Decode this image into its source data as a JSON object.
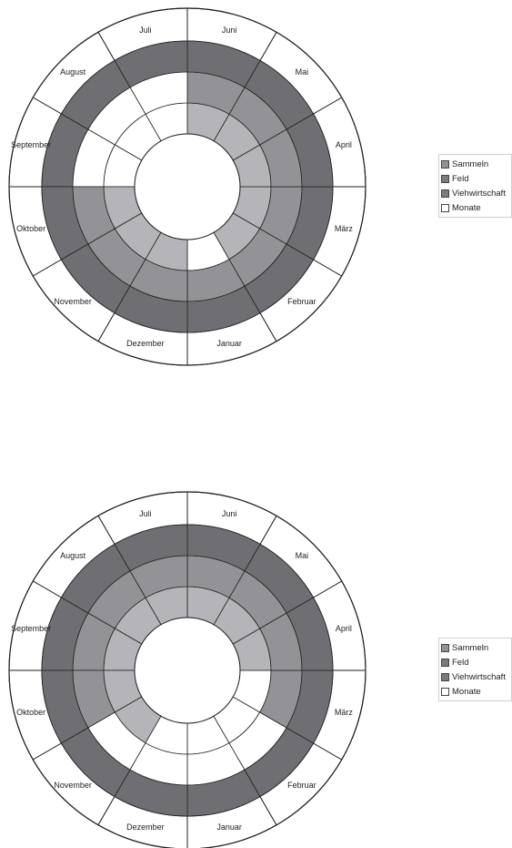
{
  "chart_data": [
    {
      "type": "radial",
      "months": [
        "Januar",
        "Februar",
        "März",
        "April",
        "Mai",
        "Juni",
        "Juli",
        "August",
        "September",
        "Oktober",
        "November",
        "Dezember"
      ],
      "rings": [
        "Sammeln",
        "Feld",
        "Viehwirtschaft"
      ],
      "colors": {
        "Sammeln": "#b5b5b9",
        "Feld": "#939397",
        "Viehwirtschaft": "#6f6f73",
        "empty": "#ffffff"
      },
      "series": [
        {
          "name": "Sammeln",
          "values": [
            0,
            1,
            1,
            1,
            1,
            1,
            0,
            0,
            0,
            1,
            1,
            1
          ]
        },
        {
          "name": "Feld",
          "values": [
            1,
            1,
            1,
            1,
            1,
            1,
            0,
            0,
            0,
            1,
            1,
            1
          ]
        },
        {
          "name": "Viehwirtschaft",
          "values": [
            1,
            1,
            1,
            1,
            1,
            1,
            1,
            1,
            1,
            1,
            1,
            1
          ]
        }
      ],
      "legend": [
        "Sammeln",
        "Feld",
        "Viehwirtschaft",
        "Monate"
      ],
      "legend_placement": "right"
    },
    {
      "type": "radial",
      "months": [
        "Januar",
        "Februar",
        "März",
        "April",
        "Mai",
        "Juni",
        "Juli",
        "August",
        "September",
        "Oktober",
        "November",
        "Dezember"
      ],
      "rings": [
        "Sammeln",
        "Feld",
        "Viehwirtschaft"
      ],
      "colors": {
        "Sammeln": "#b5b5b9",
        "Feld": "#939397",
        "Viehwirtschaft": "#6f6f73",
        "empty": "#ffffff"
      },
      "series": [
        {
          "name": "Sammeln",
          "values": [
            0,
            0,
            0,
            1,
            1,
            1,
            1,
            1,
            1,
            1,
            1,
            0
          ]
        },
        {
          "name": "Feld",
          "values": [
            0,
            0,
            1,
            1,
            1,
            1,
            1,
            1,
            1,
            1,
            0,
            0
          ]
        },
        {
          "name": "Viehwirtschaft",
          "values": [
            1,
            1,
            1,
            1,
            1,
            1,
            1,
            1,
            1,
            1,
            1,
            1
          ]
        }
      ],
      "legend": [
        "Sammeln",
        "Feld",
        "Viehwirtschaft",
        "Monate"
      ],
      "legend_placement": "right"
    }
  ]
}
